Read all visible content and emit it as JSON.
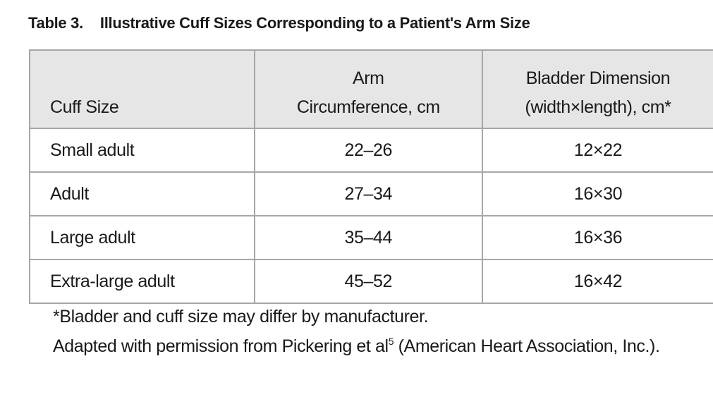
{
  "title": {
    "label": "Table 3.",
    "text": "Illustrative Cuff Sizes Corresponding to a Patient's Arm Size"
  },
  "table": {
    "header": [
      [
        "Cuff Size"
      ],
      [
        "Arm",
        "Circumference, cm"
      ],
      [
        "Bladder Dimension",
        "(width×length), cm*"
      ]
    ],
    "rows": [
      [
        "Small adult",
        "22–26",
        "12×22"
      ],
      [
        "Adult",
        "27–34",
        "16×30"
      ],
      [
        "Large adult",
        "35–44",
        "16×36"
      ],
      [
        "Extra-large adult",
        "45–52",
        "16×42"
      ]
    ]
  },
  "footnotes": {
    "note": "*Bladder and cuff size may differ by manufacturer.",
    "source": {
      "before": "Adapted with permission from Pickering et al",
      "sup": "5",
      "after": " (American Heart Association, Inc.)."
    }
  }
}
